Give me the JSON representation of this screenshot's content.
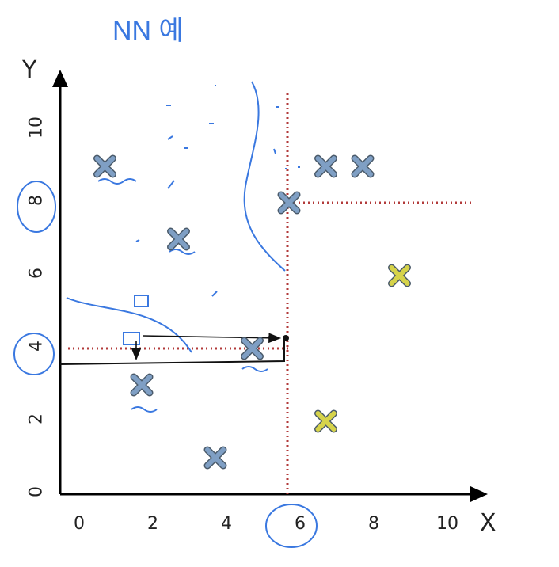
{
  "chart_data": {
    "type": "scatter",
    "xlabel": "X",
    "ylabel": "Y",
    "xlim": [
      0,
      11
    ],
    "ylim": [
      0,
      11
    ],
    "x_ticks": [
      "0",
      "2",
      "4",
      "6",
      "8",
      "10"
    ],
    "y_ticks": [
      "0",
      "2",
      "4",
      "6",
      "8",
      "10"
    ],
    "grid": false,
    "series": [
      {
        "color": "#7f9fc4",
        "points": [
          [
            1,
            9
          ],
          [
            3,
            7
          ],
          [
            6,
            8
          ],
          [
            7,
            9
          ],
          [
            8,
            9
          ],
          [
            5,
            4
          ],
          [
            2,
            3
          ],
          [
            4,
            1
          ]
        ]
      },
      {
        "color": "#d6d34a",
        "points": [
          [
            9,
            6
          ],
          [
            7,
            2
          ]
        ]
      }
    ],
    "split_lines": [
      {
        "orientation": "vertical",
        "x": 6,
        "y_from": 0,
        "y_to": 11
      },
      {
        "orientation": "horizontal",
        "y": 8,
        "x_from": 6,
        "x_to": 11
      },
      {
        "orientation": "horizontal",
        "y": 4,
        "x_from": 0,
        "x_to": 6
      }
    ],
    "annotations": {
      "handwritten_title": "NN 예",
      "circled_ticks": [
        "8",
        "4",
        "6"
      ]
    }
  }
}
